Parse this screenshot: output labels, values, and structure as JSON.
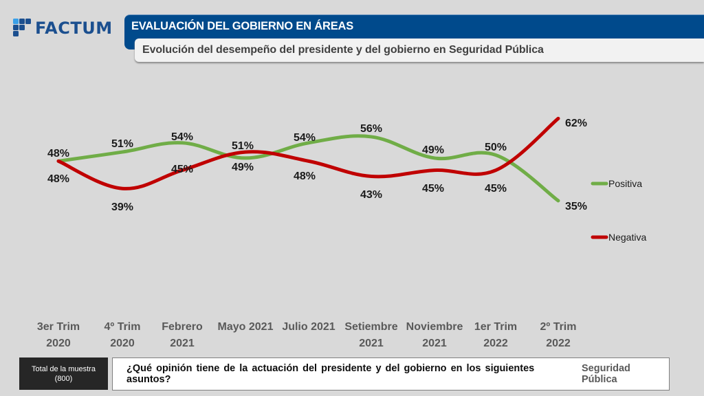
{
  "brand": {
    "logo_text": "FACTUM",
    "logo_color": "#1b4f8f",
    "logo_accent": "#3aa0e8"
  },
  "header": {
    "title": "EVALUACIÓN DEL GOBIERNO EN ÁREAS",
    "subtitle": "Evolución del desempeño del presidente y del gobierno en Seguridad Pública",
    "title_bg": "#004a8c"
  },
  "chart_data": {
    "type": "line",
    "title": "Evolución del desempeño del presidente y del gobierno en Seguridad Pública",
    "xlabel": "",
    "ylabel": "",
    "ylim": [
      0,
      100
    ],
    "grid": false,
    "legend_position": "right",
    "categories": [
      [
        "3er Trim",
        "2020"
      ],
      [
        "4º Trim",
        "2020"
      ],
      [
        "Febrero",
        "2021"
      ],
      [
        "Mayo 2021"
      ],
      [
        "Julio 2021"
      ],
      [
        "Setiembre",
        "2021"
      ],
      [
        "Noviembre",
        "2021"
      ],
      [
        "1er Trim",
        "2022"
      ],
      [
        "2º Trim",
        "2022"
      ]
    ],
    "series": [
      {
        "name": "Positiva",
        "color": "#70ad47",
        "values": [
          48,
          51,
          54,
          49,
          54,
          56,
          49,
          50,
          35
        ],
        "labels": [
          "48%",
          "51%",
          "54%",
          "49%",
          "54%",
          "56%",
          "49%",
          "50%",
          "35%"
        ]
      },
      {
        "name": "Negativa",
        "color": "#c00000",
        "values": [
          48,
          39,
          45,
          51,
          48,
          43,
          45,
          45,
          62
        ],
        "labels": [
          "48%",
          "39%",
          "45%",
          "51%",
          "48%",
          "43%",
          "45%",
          "45%",
          "62%"
        ]
      }
    ]
  },
  "footer": {
    "sample_label": "Total de la muestra",
    "sample_size": "(800)",
    "question": "¿Qué opinión tiene de la actuación del presidente y del gobierno en los siguientes asuntos?",
    "topic": "Seguridad Pública"
  }
}
